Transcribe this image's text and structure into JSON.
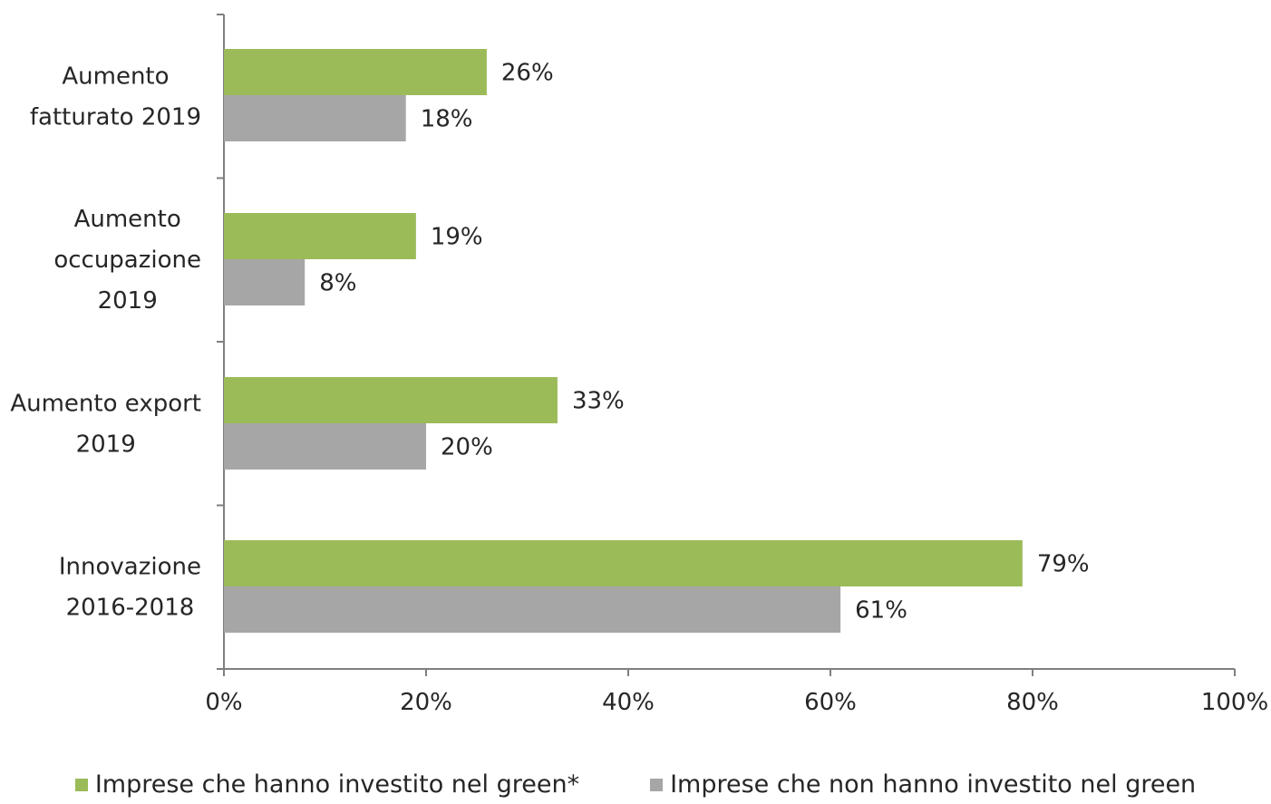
{
  "chart_data": {
    "type": "bar",
    "orientation": "horizontal",
    "categories": [
      [
        "Aumento",
        "fatturato 2019"
      ],
      [
        "Aumento",
        "occupazione",
        "2019"
      ],
      [
        "Aumento export",
        "2019"
      ],
      [
        "Innovazione",
        "2016-2018"
      ]
    ],
    "series": [
      {
        "name": "Imprese che hanno investito nel green*",
        "color": "#9bbb59",
        "values": [
          26,
          19,
          33,
          79
        ],
        "labels": [
          "26%",
          "19%",
          "33%",
          "79%"
        ]
      },
      {
        "name": "Imprese che non hanno investito nel green",
        "color": "#a6a6a6",
        "values": [
          18,
          8,
          20,
          61
        ],
        "labels": [
          "18%",
          "8%",
          "20%",
          "61%"
        ]
      }
    ],
    "xlim": [
      0,
      100
    ],
    "xticks": [
      0,
      20,
      40,
      60,
      80,
      100
    ],
    "xtick_labels": [
      "0%",
      "20%",
      "40%",
      "60%",
      "80%",
      "100%"
    ],
    "grid": false,
    "legend_position": "bottom"
  }
}
